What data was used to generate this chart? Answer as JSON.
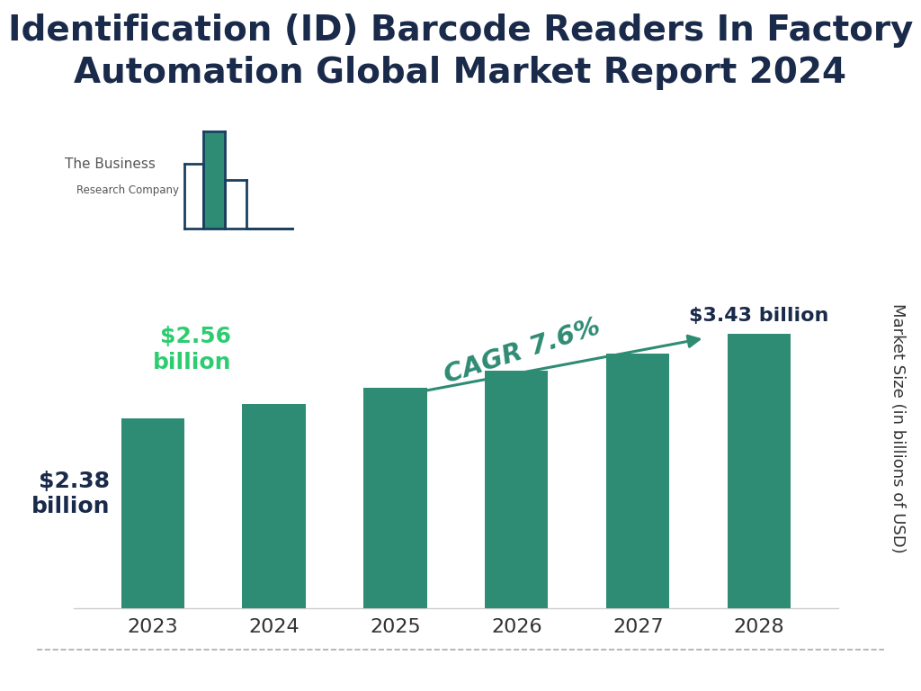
{
  "title": "Identification (ID) Barcode Readers In Factory\nAutomation Global Market Report 2024",
  "years": [
    "2023",
    "2024",
    "2025",
    "2026",
    "2027",
    "2028"
  ],
  "values": [
    2.38,
    2.56,
    2.76,
    2.97,
    3.19,
    3.43
  ],
  "bar_color": "#2e8b74",
  "ylabel": "Market Size (in billions of USD)",
  "title_color": "#1a2a4a",
  "title_fontsize": 28,
  "tick_fontsize": 16,
  "cagr_text": "CAGR 7.6%",
  "cagr_color": "#2e8b74",
  "background_color": "#ffffff",
  "arrow_color": "#2e8b74",
  "logo_dark": "#1a4060",
  "logo_teal": "#2e8b74",
  "logo_text_color": "#555555",
  "dashed_line_color": "#aaaaaa",
  "ylim": [
    0,
    4.5
  ],
  "label_dark_color": "#1a2a4a",
  "label_green_color": "#2ecc71"
}
